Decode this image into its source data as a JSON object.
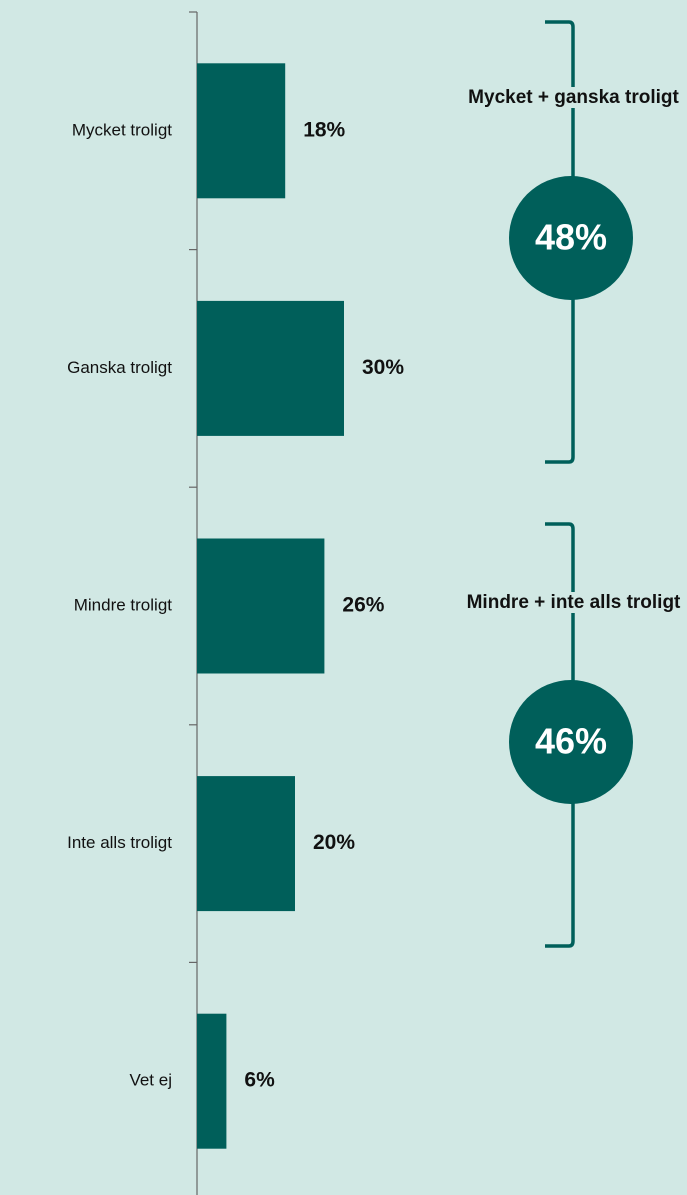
{
  "chart_data": {
    "type": "barh",
    "categories": [
      "Mycket troligt",
      "Ganska troligt",
      "Mindre troligt",
      "Inte alls troligt",
      "Vet ej"
    ],
    "values": [
      18,
      30,
      26,
      20,
      6
    ],
    "value_labels": [
      "18%",
      "30%",
      "26%",
      "20%",
      "6%"
    ],
    "color": "#005f5a",
    "annotations": [
      {
        "label": "Mycket + ganska troligt",
        "value": 48,
        "value_label": "48%"
      },
      {
        "label": "Mindre + inte alls troligt",
        "value": 46,
        "value_label": "46%"
      }
    ]
  }
}
